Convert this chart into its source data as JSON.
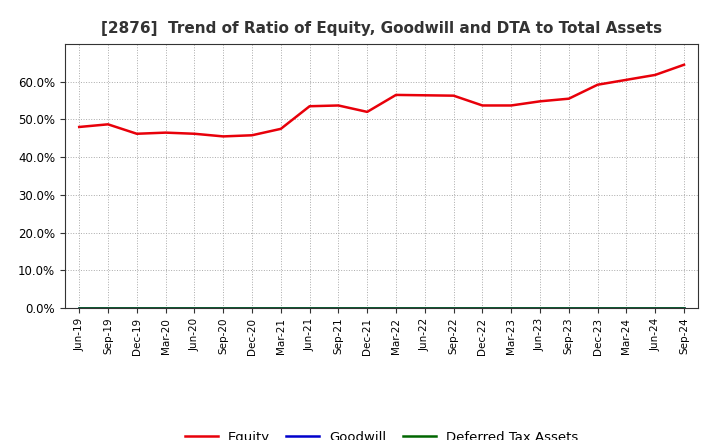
{
  "title": "[2876]  Trend of Ratio of Equity, Goodwill and DTA to Total Assets",
  "x_labels": [
    "Jun-19",
    "Sep-19",
    "Dec-19",
    "Mar-20",
    "Jun-20",
    "Sep-20",
    "Dec-20",
    "Mar-21",
    "Jun-21",
    "Sep-21",
    "Dec-21",
    "Mar-22",
    "Jun-22",
    "Sep-22",
    "Dec-22",
    "Mar-23",
    "Jun-23",
    "Sep-23",
    "Dec-23",
    "Mar-24",
    "Jun-24",
    "Sep-24"
  ],
  "equity": [
    0.48,
    0.487,
    0.462,
    0.465,
    0.462,
    0.455,
    0.458,
    0.475,
    0.535,
    0.537,
    0.52,
    0.565,
    0.564,
    0.563,
    0.537,
    0.537,
    0.548,
    0.555,
    0.592,
    0.605,
    0.618,
    0.645
  ],
  "goodwill": [
    0,
    0,
    0,
    0,
    0,
    0,
    0,
    0,
    0,
    0,
    0,
    0,
    0,
    0,
    0,
    0,
    0,
    0,
    0,
    0,
    0,
    0
  ],
  "dta": [
    0,
    0,
    0,
    0,
    0,
    0,
    0,
    0,
    0,
    0,
    0,
    0,
    0,
    0,
    0,
    0,
    0,
    0,
    0,
    0,
    0,
    0
  ],
  "equity_color": "#e8000a",
  "goodwill_color": "#0000cc",
  "dta_color": "#006600",
  "ylim": [
    0,
    0.7
  ],
  "yticks": [
    0.0,
    0.1,
    0.2,
    0.3,
    0.4,
    0.5,
    0.6
  ],
  "background_color": "#ffffff",
  "plot_bg_color": "#ffffff",
  "grid_color": "#aaaaaa",
  "title_fontsize": 11,
  "legend_labels": [
    "Equity",
    "Goodwill",
    "Deferred Tax Assets"
  ]
}
